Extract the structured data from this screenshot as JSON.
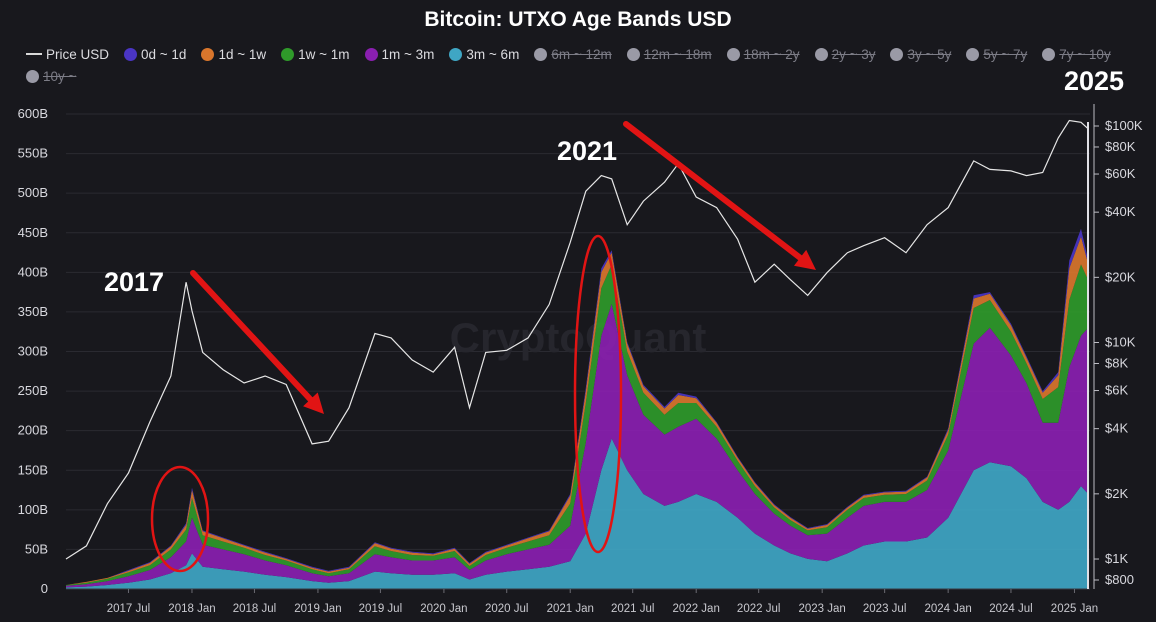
{
  "chart_data": {
    "type": "area",
    "title": "Bitcoin: UTXO Age Bands USD",
    "watermark": "CryptoQuant",
    "legend_position": "top",
    "legend": [
      {
        "name": "Price USD",
        "color": "#d8d8d8",
        "enabled": true,
        "kind": "line"
      },
      {
        "name": "0d ~ 1d",
        "color": "#4a35c4",
        "enabled": true
      },
      {
        "name": "1d ~ 1w",
        "color": "#d9762c",
        "enabled": true
      },
      {
        "name": "1w ~ 1m",
        "color": "#2f9a2a",
        "enabled": true
      },
      {
        "name": "1m ~ 3m",
        "color": "#8a1fb0",
        "enabled": true
      },
      {
        "name": "3m ~ 6m",
        "color": "#3fa6c4",
        "enabled": true
      },
      {
        "name": "6m ~ 12m",
        "color": "#9a9aa6",
        "enabled": false
      },
      {
        "name": "12m ~ 18m",
        "color": "#9a9aa6",
        "enabled": false
      },
      {
        "name": "18m ~ 2y",
        "color": "#9a9aa6",
        "enabled": false
      },
      {
        "name": "2y ~ 3y",
        "color": "#9a9aa6",
        "enabled": false
      },
      {
        "name": "3y ~ 5y",
        "color": "#9a9aa6",
        "enabled": false
      },
      {
        "name": "5y ~ 7y",
        "color": "#9a9aa6",
        "enabled": false
      },
      {
        "name": "7y ~ 10y",
        "color": "#9a9aa6",
        "enabled": false
      },
      {
        "name": "10y ~",
        "color": "#9a9aa6",
        "enabled": false
      }
    ],
    "y_left": {
      "min": 0,
      "max": 600,
      "ticks": [
        0,
        50,
        100,
        150,
        200,
        250,
        300,
        350,
        400,
        450,
        500,
        550,
        600
      ],
      "tick_labels": [
        "0",
        "50B",
        "100B",
        "150B",
        "200B",
        "250B",
        "300B",
        "350B",
        "400B",
        "450B",
        "500B",
        "550B",
        "600B"
      ]
    },
    "y_right": {
      "scale": "log",
      "min": 800,
      "max": 100000,
      "ticks": [
        800,
        1000,
        2000,
        4000,
        6000,
        8000,
        10000,
        20000,
        40000,
        60000,
        80000,
        100000
      ],
      "tick_labels": [
        "$800",
        "$1K",
        "$2K",
        "$4K",
        "$6K",
        "$8K",
        "$10K",
        "$20K",
        "$40K",
        "$60K",
        "$80K",
        "$100K"
      ]
    },
    "x_axis": {
      "min": "2017-01-01",
      "max": "2025-02-15",
      "ticks": [
        "2017-07-01",
        "2018-01-01",
        "2018-07-01",
        "2019-01-01",
        "2019-07-01",
        "2020-01-01",
        "2020-07-01",
        "2021-01-01",
        "2021-07-01",
        "2022-01-01",
        "2022-07-01",
        "2023-01-01",
        "2023-07-01",
        "2024-01-01",
        "2024-07-01",
        "2025-01-01"
      ],
      "tick_labels": [
        "2017 Jul",
        "2018 Jan",
        "2018 Jul",
        "2019 Jan",
        "2019 Jul",
        "2020 Jan",
        "2020 Jul",
        "2021 Jan",
        "2021 Jul",
        "2022 Jan",
        "2022 Jul",
        "2023 Jan",
        "2023 Jul",
        "2024 Jan",
        "2024 Jul",
        "2025 Jan"
      ]
    },
    "x": [
      "2017-01-01",
      "2017-03-01",
      "2017-05-01",
      "2017-07-01",
      "2017-09-01",
      "2017-11-01",
      "2017-12-15",
      "2018-01-01",
      "2018-02-01",
      "2018-04-01",
      "2018-06-01",
      "2018-08-01",
      "2018-10-01",
      "2018-12-15",
      "2019-02-01",
      "2019-04-01",
      "2019-06-15",
      "2019-08-01",
      "2019-10-01",
      "2019-12-01",
      "2020-02-01",
      "2020-03-15",
      "2020-05-01",
      "2020-07-01",
      "2020-09-01",
      "2020-11-01",
      "2021-01-01",
      "2021-02-15",
      "2021-04-01",
      "2021-05-01",
      "2021-06-15",
      "2021-08-01",
      "2021-10-01",
      "2021-11-10",
      "2022-01-01",
      "2022-03-01",
      "2022-05-01",
      "2022-06-20",
      "2022-08-15",
      "2022-10-01",
      "2022-11-20",
      "2023-01-15",
      "2023-03-15",
      "2023-05-01",
      "2023-07-01",
      "2023-09-01",
      "2023-11-01",
      "2024-01-01",
      "2024-03-15",
      "2024-05-01",
      "2024-07-01",
      "2024-08-15",
      "2024-10-01",
      "2024-11-15",
      "2024-12-17",
      "2025-01-20",
      "2025-02-10"
    ],
    "price_usd": [
      1000,
      1150,
      1800,
      2500,
      4300,
      7000,
      19000,
      14000,
      9000,
      7500,
      6500,
      7000,
      6400,
      3400,
      3500,
      5000,
      11000,
      10500,
      8300,
      7300,
      9500,
      5000,
      9000,
      9200,
      10500,
      15000,
      29000,
      50000,
      59000,
      57000,
      35000,
      45000,
      55000,
      67000,
      47000,
      42000,
      30000,
      19000,
      23000,
      19500,
      16500,
      21000,
      26000,
      28000,
      30500,
      26000,
      35000,
      42000,
      69000,
      63000,
      62000,
      59000,
      61000,
      88000,
      106000,
      104000,
      97000
    ],
    "series": [
      {
        "name": "3m ~ 6m",
        "values": [
          2,
          3,
          5,
          8,
          12,
          20,
          30,
          45,
          28,
          25,
          22,
          18,
          15,
          10,
          8,
          10,
          22,
          20,
          18,
          18,
          20,
          12,
          18,
          22,
          25,
          28,
          35,
          70,
          150,
          190,
          150,
          120,
          105,
          110,
          120,
          110,
          90,
          70,
          55,
          45,
          38,
          35,
          45,
          55,
          60,
          60,
          65,
          90,
          150,
          160,
          155,
          140,
          110,
          100,
          110,
          130,
          120
        ]
      },
      {
        "name": "1m ~ 3m",
        "values": [
          2,
          3,
          5,
          8,
          12,
          20,
          30,
          45,
          28,
          25,
          22,
          18,
          15,
          10,
          8,
          10,
          22,
          20,
          18,
          18,
          20,
          12,
          18,
          22,
          25,
          28,
          45,
          115,
          170,
          170,
          120,
          100,
          90,
          95,
          95,
          80,
          60,
          50,
          40,
          35,
          30,
          35,
          45,
          50,
          50,
          50,
          60,
          85,
          160,
          170,
          140,
          120,
          100,
          110,
          170,
          190,
          210
        ]
      },
      {
        "name": "1w ~ 1m",
        "values": [
          1,
          2,
          3,
          5,
          6,
          10,
          15,
          25,
          12,
          10,
          8,
          7,
          6,
          5,
          4,
          5,
          10,
          8,
          7,
          6,
          8,
          5,
          7,
          8,
          10,
          12,
          28,
          50,
          60,
          50,
          30,
          28,
          25,
          30,
          20,
          15,
          12,
          10,
          8,
          7,
          6,
          8,
          10,
          10,
          9,
          10,
          12,
          20,
          45,
          35,
          30,
          25,
          30,
          45,
          85,
          90,
          60
        ]
      },
      {
        "name": "1d ~ 1w",
        "values": [
          0,
          1,
          1,
          2,
          3,
          4,
          6,
          10,
          5,
          4,
          3,
          3,
          2,
          2,
          2,
          2,
          4,
          3,
          3,
          2,
          3,
          3,
          3,
          3,
          4,
          5,
          10,
          15,
          20,
          15,
          10,
          8,
          8,
          10,
          6,
          5,
          4,
          4,
          3,
          3,
          2,
          3,
          3,
          3,
          3,
          3,
          4,
          6,
          12,
          8,
          8,
          7,
          8,
          15,
          40,
          35,
          20
        ]
      },
      {
        "name": "0d ~ 1d",
        "values": [
          0,
          0,
          0,
          1,
          1,
          1,
          2,
          3,
          1,
          1,
          1,
          1,
          1,
          1,
          1,
          1,
          1,
          1,
          1,
          1,
          1,
          1,
          1,
          1,
          1,
          1,
          2,
          4,
          5,
          3,
          2,
          2,
          2,
          3,
          2,
          1,
          1,
          1,
          1,
          1,
          1,
          1,
          1,
          1,
          1,
          1,
          1,
          2,
          4,
          2,
          2,
          2,
          2,
          4,
          10,
          10,
          5
        ]
      }
    ],
    "annotations": [
      {
        "text": "2017",
        "kind": "year-label"
      },
      {
        "text": "2021",
        "kind": "year-label"
      },
      {
        "text": "2025",
        "kind": "year-label"
      }
    ]
  }
}
